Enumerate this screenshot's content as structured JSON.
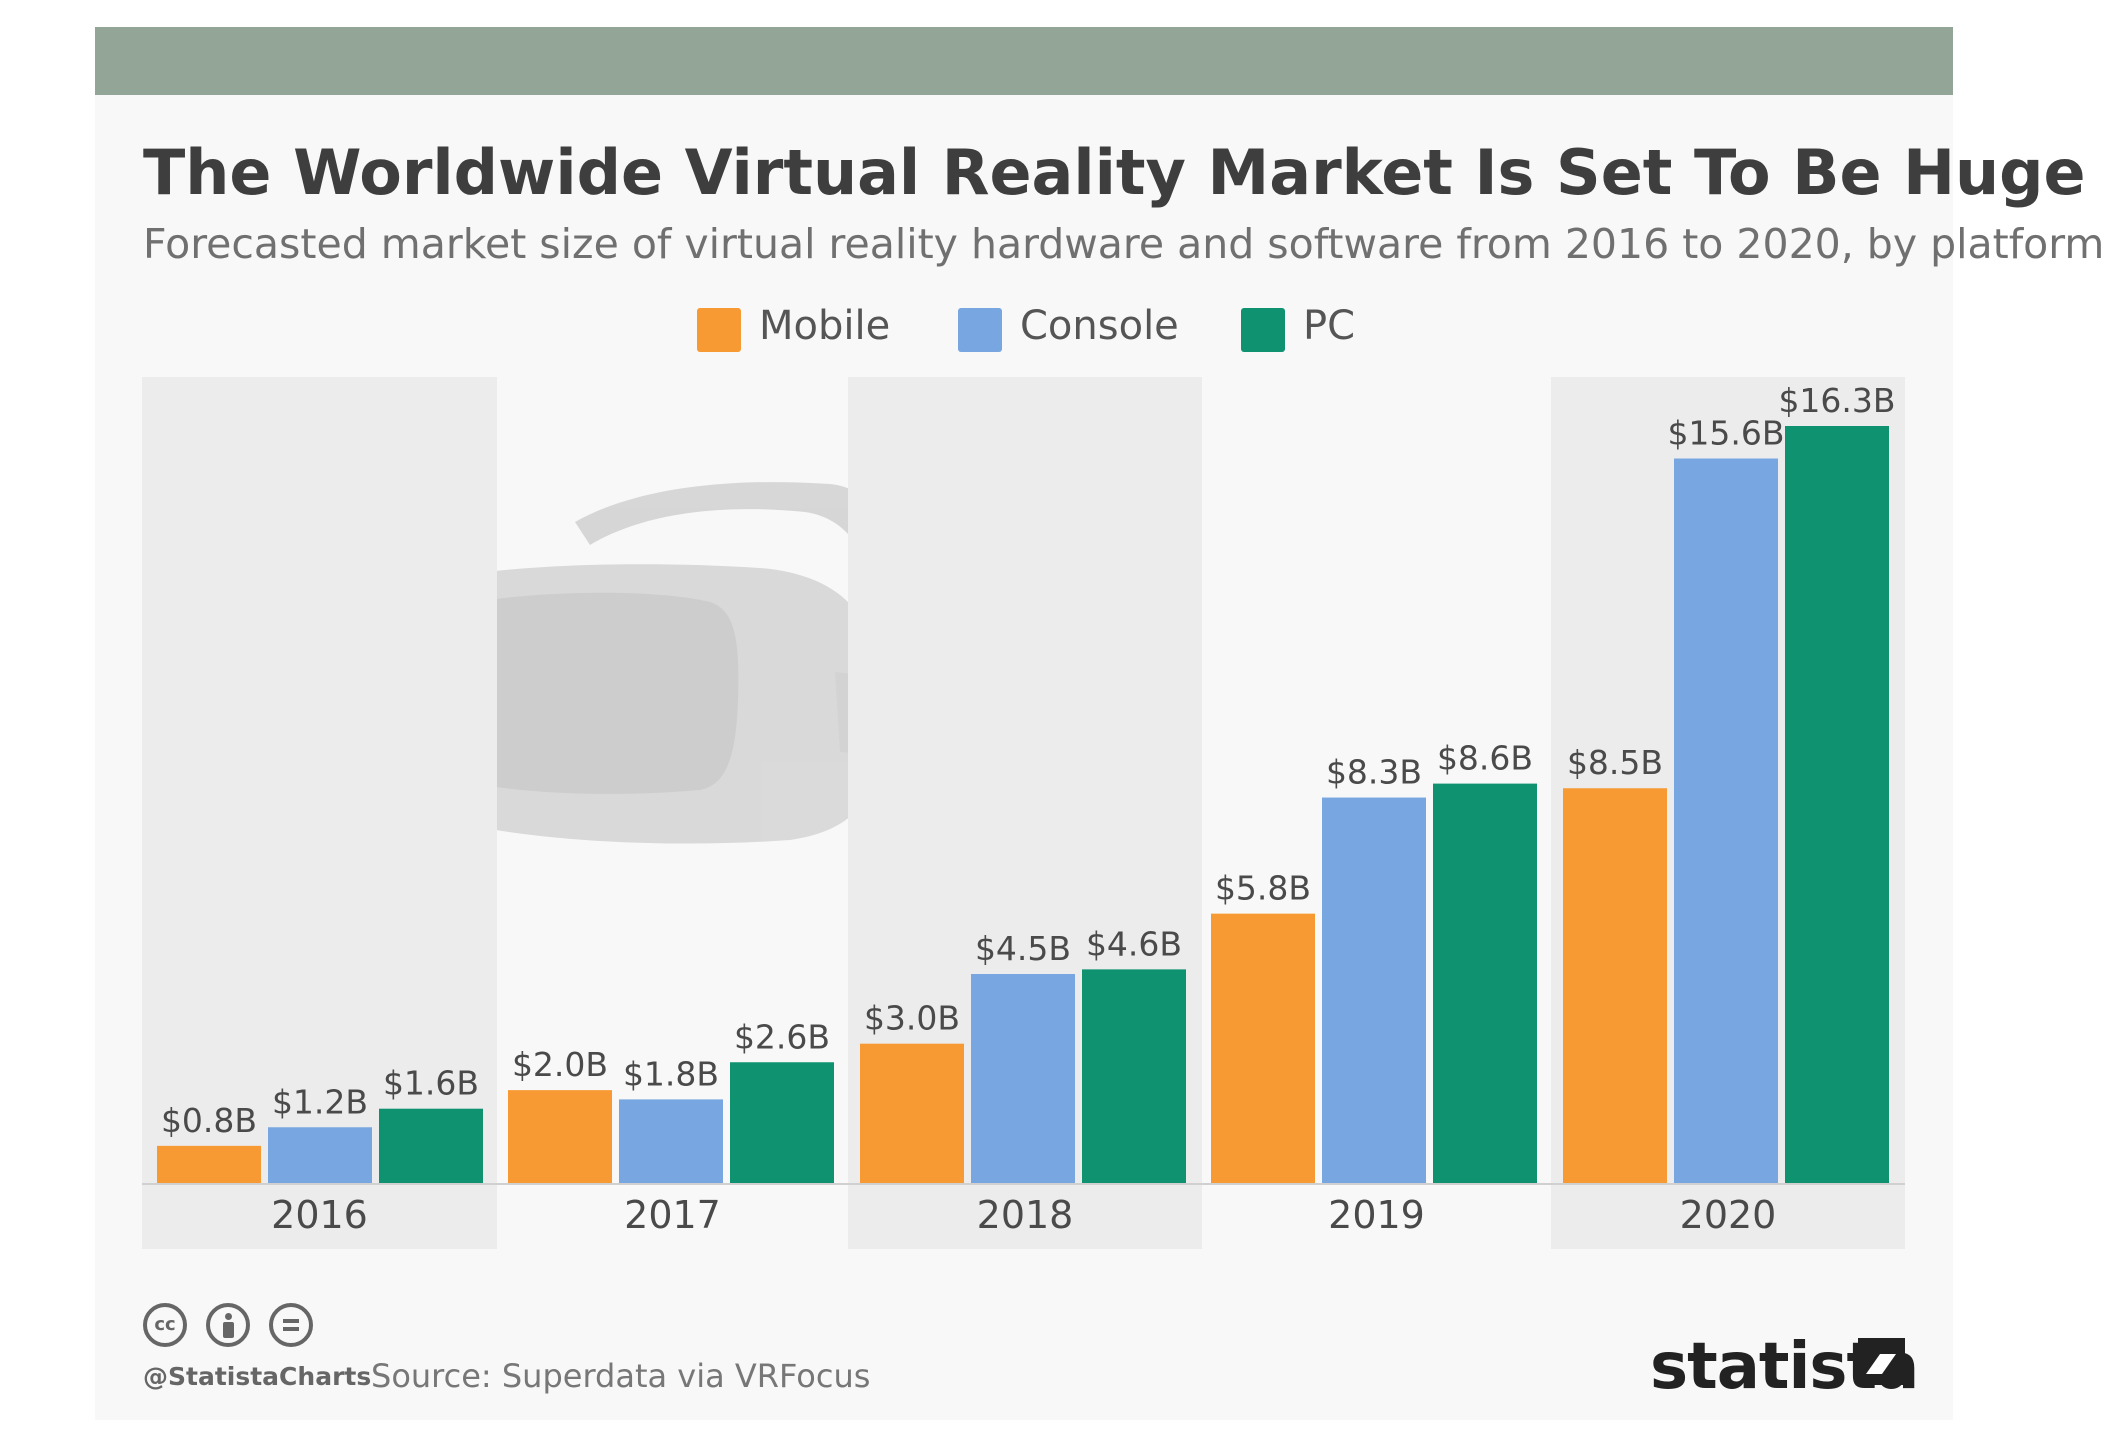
{
  "chart_data": {
    "type": "bar",
    "title": "The Worldwide Virtual Reality Market Is Set To Be Huge",
    "subtitle": "Forecasted market size of virtual reality hardware and software from 2016 to 2020, by platform",
    "categories": [
      "2016",
      "2017",
      "2018",
      "2019",
      "2020"
    ],
    "series": [
      {
        "name": "Mobile",
        "color": "#f79a34",
        "values": [
          0.8,
          2.0,
          3.0,
          5.8,
          8.5
        ],
        "labels": [
          "$0.8B",
          "$2.0B",
          "$3.0B",
          "$5.8B",
          "$8.5B"
        ]
      },
      {
        "name": "Console",
        "color": "#77a6e1",
        "values": [
          1.2,
          1.8,
          4.5,
          8.3,
          15.6
        ],
        "labels": [
          "$1.2B",
          "$1.8B",
          "$4.5B",
          "$8.3B",
          "$15.6B"
        ]
      },
      {
        "name": "PC",
        "color": "#0e9270",
        "values": [
          1.6,
          2.6,
          4.6,
          8.6,
          16.3
        ],
        "labels": [
          "$1.6B",
          "$2.6B",
          "$4.6B",
          "$8.6B",
          "$16.3B"
        ]
      }
    ],
    "ylim": [
      0,
      16.3
    ],
    "xlabel": "",
    "ylabel": "",
    "grid": false,
    "legend_position": "top-center"
  },
  "footer": {
    "handle": "@StatistaCharts",
    "source": "Source: Superdata via VRFocus",
    "brand": "statista"
  }
}
